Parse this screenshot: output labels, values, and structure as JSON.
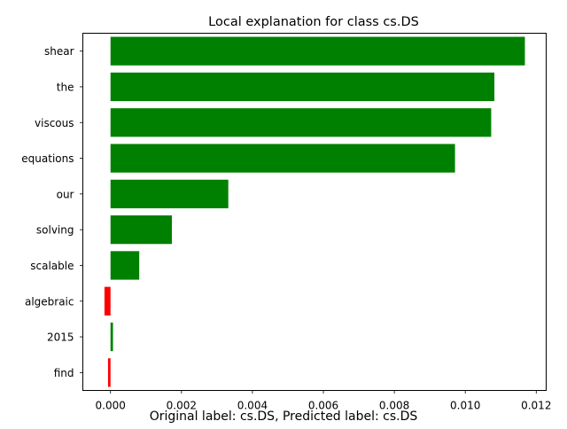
{
  "chart_data": {
    "type": "bar",
    "orientation": "horizontal",
    "title": "Local explanation for class cs.DS",
    "xlabel": "",
    "ylabel": "",
    "footer_text": "Original label: cs.DS, Predicted label: cs.DS",
    "categories": [
      "shear",
      "the",
      "viscous",
      "equations",
      "our",
      "solving",
      "scalable",
      "algebraic",
      "2015",
      "find"
    ],
    "values": [
      0.01168,
      0.01082,
      0.01073,
      0.00971,
      0.00332,
      0.00173,
      0.00081,
      -0.00017,
      7e-05,
      -7e-05
    ],
    "xlim": [
      -0.00078,
      0.01228
    ],
    "xticks": [
      0.0,
      0.002,
      0.004,
      0.006,
      0.008,
      0.01,
      0.012
    ],
    "xtick_labels": [
      "0.000",
      "0.002",
      "0.004",
      "0.006",
      "0.008",
      "0.010",
      "0.012"
    ],
    "grid": false,
    "legend": "none",
    "positive_color": "#008000",
    "negative_color": "#ff0000"
  }
}
